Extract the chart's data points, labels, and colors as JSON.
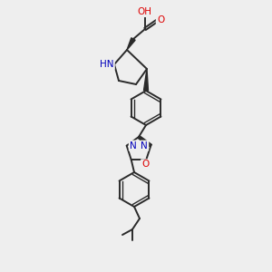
{
  "bg_color": "#eeeeee",
  "bond_color": "#2a2a2a",
  "atom_colors": {
    "O": "#dd0000",
    "N": "#0000bb",
    "C": "#2a2a2a"
  },
  "figsize": [
    3.0,
    3.0
  ],
  "dpi": 100
}
